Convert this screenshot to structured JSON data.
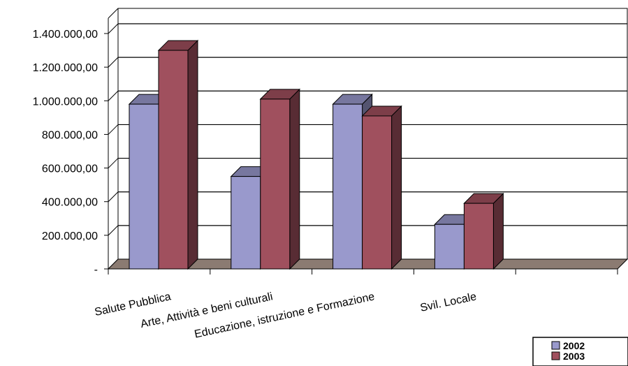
{
  "chart_data": {
    "type": "bar",
    "categories": [
      "Salute Pubblica",
      "Arte, Attività e beni culturali",
      "Educazione, istruzione e Formazione",
      "Svil. Locale",
      ""
    ],
    "series": [
      {
        "name": "2002",
        "values": [
          980000,
          550000,
          980000,
          265000,
          null
        ],
        "color": "#9999cc"
      },
      {
        "name": "2003",
        "values": [
          1300000,
          1010000,
          910000,
          390000,
          null
        ],
        "color": "#a0505e"
      }
    ],
    "y_tick_values": [
      0,
      200000,
      400000,
      600000,
      800000,
      1000000,
      1200000,
      1400000
    ],
    "y_tick_labels": [
      "-",
      "200.000,00",
      "400.000,00",
      "600.000,00",
      "800.000,00",
      "1.000.000,00",
      "1.200.000,00",
      "1.400.000,00"
    ],
    "ylim": [
      0,
      1400000
    ],
    "grid": true,
    "legend_position": "bottom-right",
    "title": "",
    "xlabel": "",
    "ylabel": ""
  }
}
